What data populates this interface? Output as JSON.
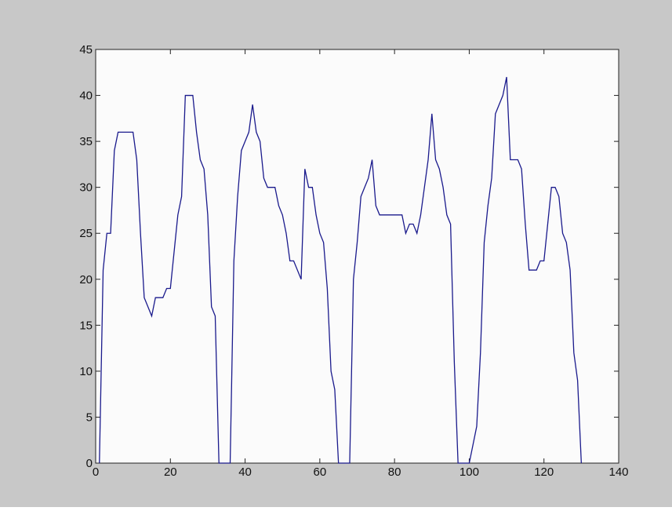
{
  "chart_data": {
    "type": "line",
    "x": [
      1,
      2,
      3,
      4,
      5,
      6,
      7,
      8,
      9,
      10,
      11,
      12,
      13,
      14,
      15,
      16,
      17,
      18,
      19,
      20,
      21,
      22,
      23,
      24,
      25,
      26,
      27,
      28,
      29,
      30,
      31,
      32,
      33,
      34,
      35,
      36,
      37,
      38,
      39,
      40,
      41,
      42,
      43,
      44,
      45,
      46,
      47,
      48,
      49,
      50,
      51,
      52,
      53,
      54,
      55,
      56,
      57,
      58,
      59,
      60,
      61,
      62,
      63,
      64,
      65,
      66,
      67,
      68,
      69,
      70,
      71,
      72,
      73,
      74,
      75,
      76,
      77,
      78,
      79,
      80,
      81,
      82,
      83,
      84,
      85,
      86,
      87,
      88,
      89,
      90,
      91,
      92,
      93,
      94,
      95,
      96,
      97,
      98,
      99,
      100,
      101,
      102,
      103,
      104,
      105,
      106,
      107,
      108,
      109,
      110,
      111,
      112,
      113,
      114,
      115,
      116,
      117,
      118,
      119,
      120,
      121,
      122,
      123,
      124,
      125,
      126,
      127,
      128,
      129,
      130
    ],
    "series": [
      {
        "color": "#1a1a8c",
        "values": [
          0,
          21,
          25,
          25,
          34,
          36,
          36,
          36,
          36,
          36,
          33,
          25,
          18,
          17,
          16,
          18,
          18,
          18,
          19,
          19,
          23,
          27,
          29,
          40,
          40,
          40,
          36,
          33,
          32,
          27,
          17,
          16,
          0,
          0,
          0,
          0,
          22,
          29,
          34,
          35,
          36,
          39,
          36,
          35,
          31,
          30,
          30,
          30,
          28,
          27,
          25,
          22,
          22,
          21,
          20,
          32,
          30,
          30,
          27,
          25,
          24,
          19,
          10,
          8,
          0,
          0,
          0,
          0,
          20,
          24,
          29,
          30,
          31,
          33,
          28,
          27,
          27,
          27,
          27,
          27,
          27,
          27,
          25,
          26,
          26,
          25,
          27,
          30,
          33,
          38,
          33,
          32,
          30,
          27,
          26,
          11,
          0,
          0,
          0,
          0,
          2,
          4,
          12,
          24,
          28,
          31,
          38,
          39,
          40,
          42,
          33,
          33,
          33,
          32,
          26,
          21,
          21,
          21,
          22,
          22,
          26,
          30,
          30,
          29,
          25,
          24,
          21,
          12,
          9,
          0
        ]
      }
    ],
    "xlim": [
      0,
      140
    ],
    "xticks": [
      0,
      20,
      40,
      60,
      80,
      100,
      120,
      140
    ],
    "ylim": [
      0,
      45
    ],
    "yticks": [
      0,
      5,
      10,
      15,
      20,
      25,
      30,
      35,
      40,
      45
    ]
  }
}
